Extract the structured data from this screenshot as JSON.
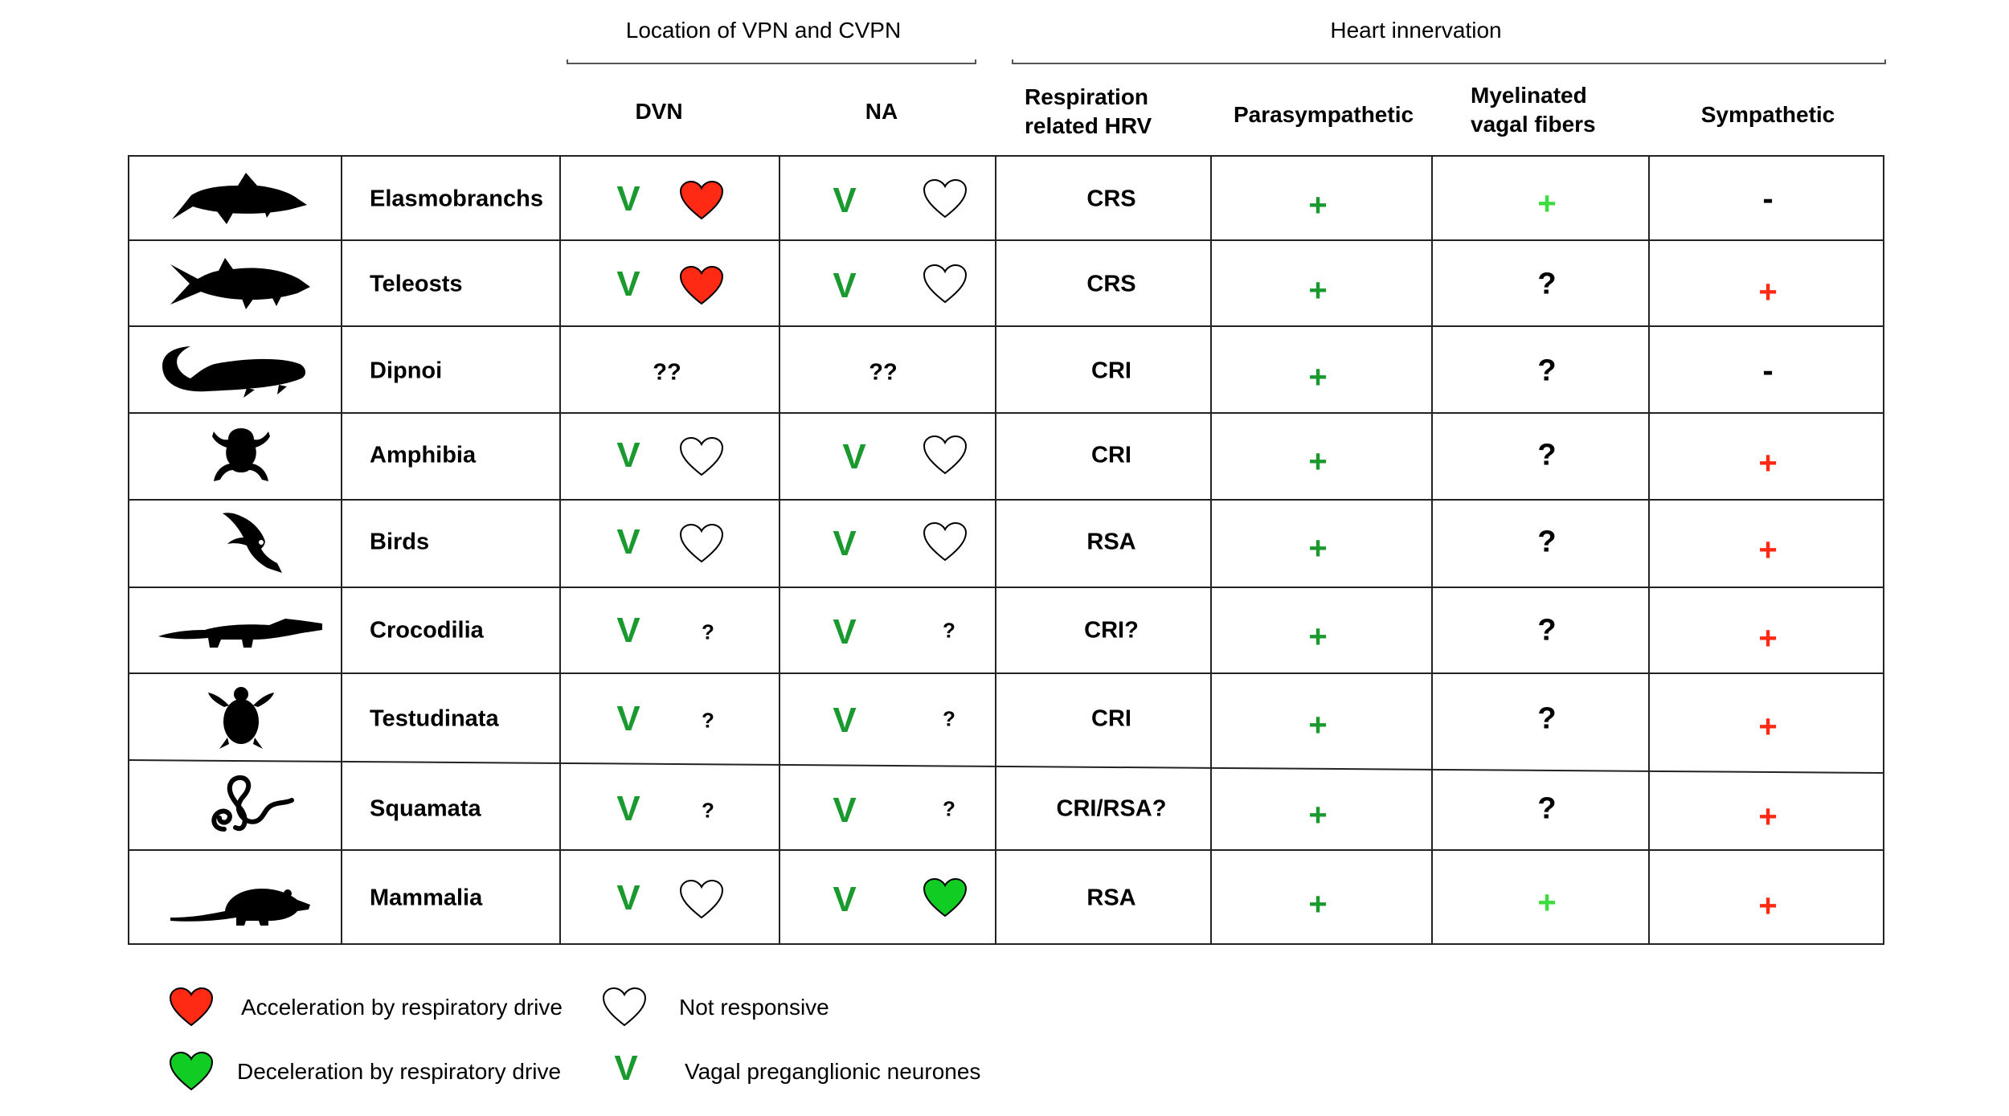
{
  "header": {
    "group_vpn": "Location of VPN and CVPN",
    "group_heart": "Heart innervation",
    "col_dvn": "DVN",
    "col_na": "NA",
    "col_resp_line1": "Respiration",
    "col_resp_line2": "related HRV",
    "col_para": "Parasympathetic",
    "col_myel_line1": "Myelinated",
    "col_myel_line2": "vagal  fibers",
    "col_symp": "Sympathetic"
  },
  "rows": [
    {
      "name": "Elasmobranchs",
      "animal": "shark-icon",
      "dvn_v": "V",
      "dvn_heart": "red",
      "na_v": "V",
      "na_heart": "white",
      "hrv": "CRS",
      "para": "+",
      "myel": "+",
      "myel_color": "lightgreen",
      "symp": "-"
    },
    {
      "name": "Teleosts",
      "animal": "fish-icon",
      "dvn_v": "V",
      "dvn_heart": "red",
      "na_v": "V",
      "na_heart": "white",
      "hrv": "CRS",
      "para": "+",
      "myel": "?",
      "symp": "+"
    },
    {
      "name": "Dipnoi",
      "animal": "lungfish-icon",
      "dvn_text": "??",
      "na_text": "??",
      "hrv": "CRI",
      "para": "+",
      "myel": "?",
      "symp": "-"
    },
    {
      "name": "Amphibia",
      "animal": "frog-icon",
      "dvn_v": "V",
      "dvn_heart": "white",
      "na_v": "V",
      "na_heart": "white",
      "hrv": "CRI",
      "para": "+",
      "myel": "?",
      "symp": "+"
    },
    {
      "name": "Birds",
      "animal": "bird-icon",
      "dvn_v": "V",
      "dvn_heart": "white",
      "na_v": "V",
      "na_heart": "white",
      "hrv": "RSA",
      "para": "+",
      "myel": "?",
      "symp": "+"
    },
    {
      "name": "Crocodilia",
      "animal": "crocodile-icon",
      "dvn_v": "V",
      "dvn_q": "?",
      "na_v": "V",
      "na_q": "?",
      "hrv": "CRI?",
      "para": "+",
      "myel": "?",
      "symp": "+"
    },
    {
      "name": "Testudinata",
      "animal": "turtle-icon",
      "dvn_v": "V",
      "dvn_q": "?",
      "na_v": "V",
      "na_q": "?",
      "hrv": "CRI",
      "para": "+",
      "myel": "?",
      "symp": "+"
    },
    {
      "name": "Squamata",
      "animal": "snake-icon",
      "dvn_v": "V",
      "dvn_q": "?",
      "na_v": "V",
      "na_q": "?",
      "hrv": "CRI/RSA?",
      "para": "+",
      "myel": "?",
      "symp": "+"
    },
    {
      "name": "Mammalia",
      "animal": "rat-icon",
      "dvn_v": "V",
      "dvn_heart": "white",
      "na_v": "V",
      "na_heart": "green",
      "hrv": "RSA",
      "para": "+",
      "myel": "+",
      "myel_color": "lightgreen",
      "symp": "+"
    }
  ],
  "legend": {
    "red_heart": "Acceleration by respiratory drive",
    "green_heart": "Deceleration by respiratory drive",
    "white_heart": "Not responsive",
    "v_symbol": "V",
    "v_label": "Vagal preganglionic neurones"
  },
  "colors": {
    "red_heart": "#ff2a14",
    "green_heart": "#11cc22",
    "v_green": "#1a9a2e",
    "plus_green": "#1a9a2e",
    "plus_light_green": "#3ddc3d",
    "plus_red": "#ff2a14"
  }
}
